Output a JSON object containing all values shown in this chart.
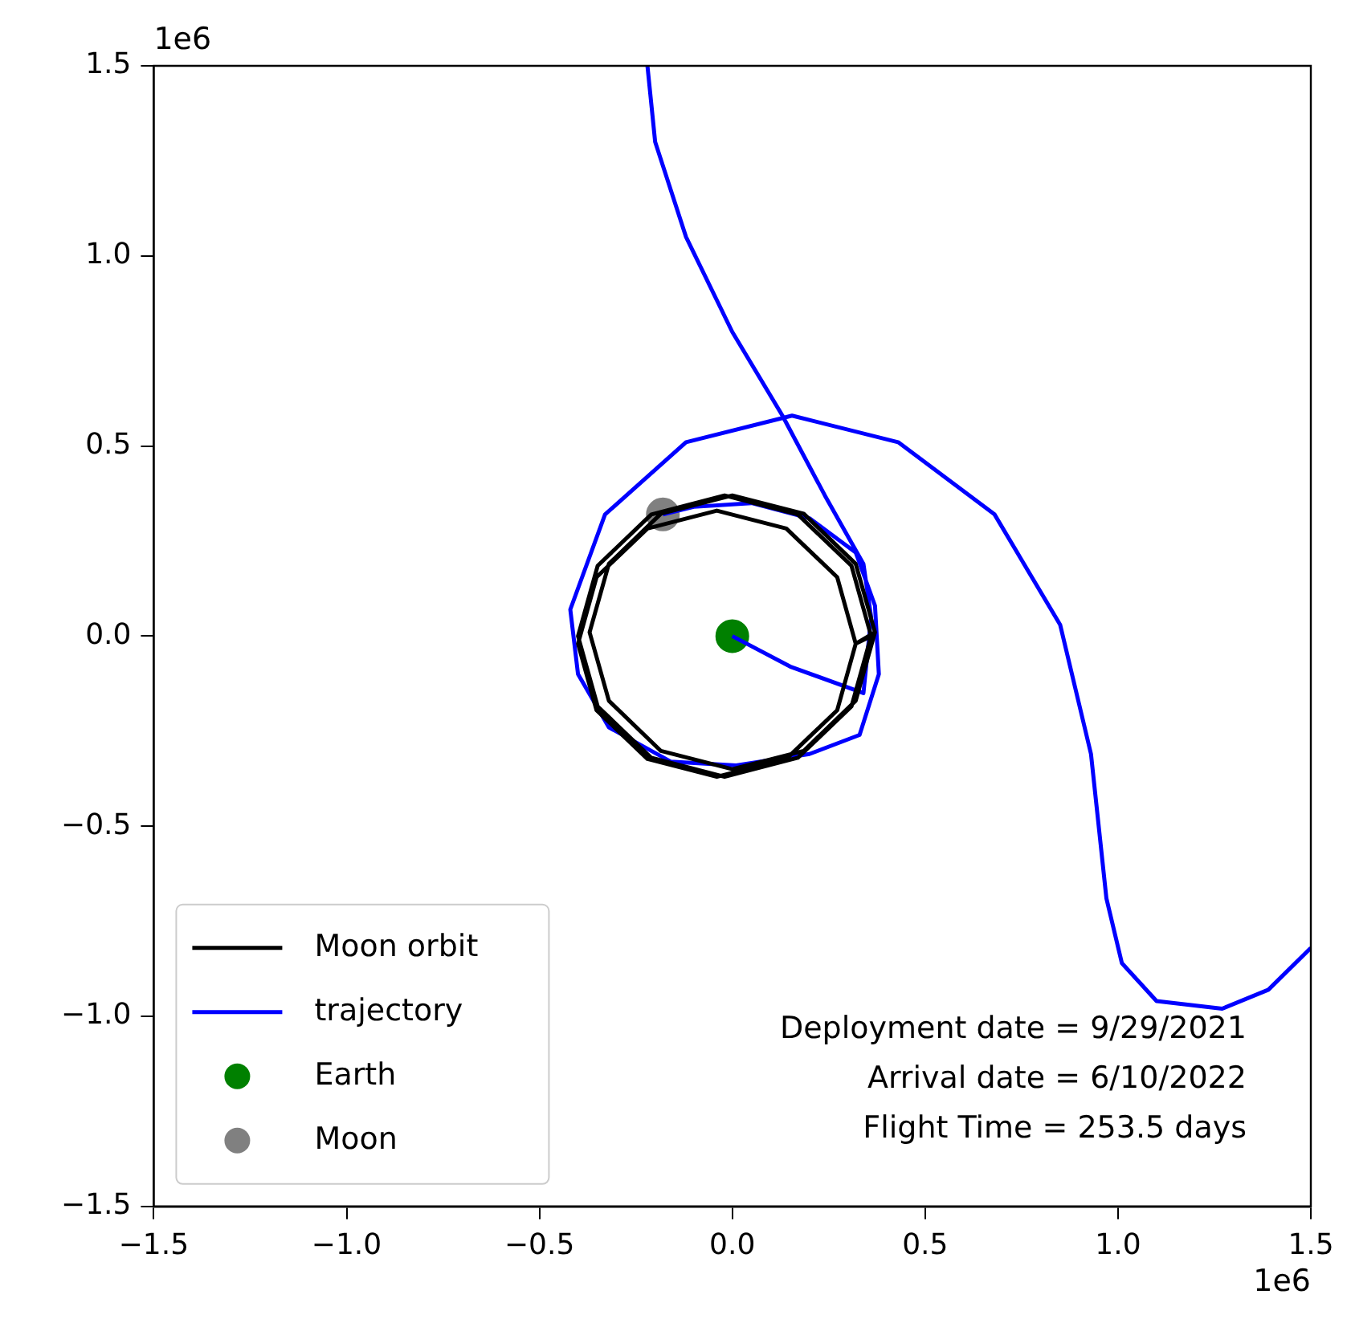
{
  "chart_data": {
    "type": "line",
    "xlim": [
      -1.5,
      1.5
    ],
    "ylim": [
      -1.5,
      1.5
    ],
    "xticks": [
      {
        "value": -1.5,
        "label": "−1.5"
      },
      {
        "value": -1.0,
        "label": "−1.0"
      },
      {
        "value": -0.5,
        "label": "−0.5"
      },
      {
        "value": 0,
        "label": "0.0"
      },
      {
        "value": 0.5,
        "label": "0.5"
      },
      {
        "value": 1.0,
        "label": "1.0"
      },
      {
        "value": 1.5,
        "label": "1.5"
      }
    ],
    "yticks": [
      {
        "value": -1.5,
        "label": "−1.5"
      },
      {
        "value": -1.0,
        "label": "−1.0"
      },
      {
        "value": -0.5,
        "label": "−0.5"
      },
      {
        "value": 0,
        "label": "0.0"
      },
      {
        "value": 0.5,
        "label": "0.5"
      },
      {
        "value": 1.0,
        "label": "1.0"
      },
      {
        "value": 1.5,
        "label": "1.5"
      }
    ],
    "grid": false,
    "legend": "bottom left",
    "annotations": [
      "1e6",
      "1e6",
      "Deployment date = 9/29/2021",
      "Arrival date = 6/10/2022",
      "Flight Time = 253.5 days"
    ],
    "series": [
      {
        "name": "Moon orbit",
        "color": "#000000",
        "marker": "none",
        "x": [
          0.36,
          0.309,
          0.17,
          -0.02,
          -0.21,
          -0.349,
          -0.4,
          -0.349,
          -0.21,
          -0.02,
          0.17,
          0.309,
          0.36,
          0.32,
          0.272,
          0.14,
          -0.04,
          -0.22,
          -0.352,
          -0.4,
          -0.352,
          -0.22,
          -0.04,
          0.14,
          0.272,
          0.32,
          0.37,
          0.32,
          0.185,
          0,
          -0.185,
          -0.32,
          -0.37,
          -0.32,
          -0.185,
          0,
          0.185,
          0.32,
          0.37
        ],
        "values": [
          0,
          0.185,
          0.32,
          0.37,
          0.32,
          0.185,
          0,
          -0.185,
          -0.32,
          -0.37,
          -0.32,
          -0.185,
          0,
          -0.02,
          0.155,
          0.283,
          0.33,
          0.283,
          0.155,
          -0.02,
          -0.195,
          -0.323,
          -0.37,
          -0.323,
          -0.195,
          -0.02,
          0.01,
          0.19,
          0.322,
          0.37,
          0.322,
          0.19,
          0.01,
          -0.17,
          -0.302,
          -0.35,
          -0.302,
          -0.17,
          0.01
        ]
      },
      {
        "name": "trajectory",
        "color": "#0000ff",
        "marker": "none",
        "x": [
          1.5,
          1.39,
          1.27,
          1.1,
          1.01,
          0.97,
          0.93,
          0.85,
          0.68,
          0.43,
          0.155,
          -0.12,
          -0.33,
          -0.42,
          -0.4,
          -0.32,
          -0.16,
          0.01,
          0.2,
          0.33,
          0.38,
          0.37,
          0.32,
          0.2,
          0.05,
          -0.1,
          -0.18,
          null,
          -0.22,
          -0.2,
          -0.12,
          0,
          0.13,
          0.24,
          0.34,
          0.36,
          0.34,
          0.15,
          0
        ],
        "values": [
          -0.82,
          -0.93,
          -0.98,
          -0.96,
          -0.86,
          -0.69,
          -0.31,
          0.03,
          0.32,
          0.51,
          0.58,
          0.51,
          0.32,
          0.07,
          -0.1,
          -0.24,
          -0.33,
          -0.34,
          -0.31,
          -0.26,
          -0.1,
          0.08,
          0.22,
          0.31,
          0.35,
          0.34,
          0.32,
          null,
          1.5,
          1.3,
          1.05,
          0.8,
          0.58,
          0.37,
          0.19,
          0.05,
          -0.15,
          -0.08,
          0
        ]
      },
      {
        "name": "Earth",
        "type": "scatter",
        "color": "#008000",
        "marker": "circle",
        "x": [
          0
        ],
        "values": [
          0
        ]
      },
      {
        "name": "Moon",
        "type": "scatter",
        "color": "#808080",
        "marker": "circle",
        "x": [
          -0.18
        ],
        "values": [
          0.32
        ]
      }
    ]
  }
}
